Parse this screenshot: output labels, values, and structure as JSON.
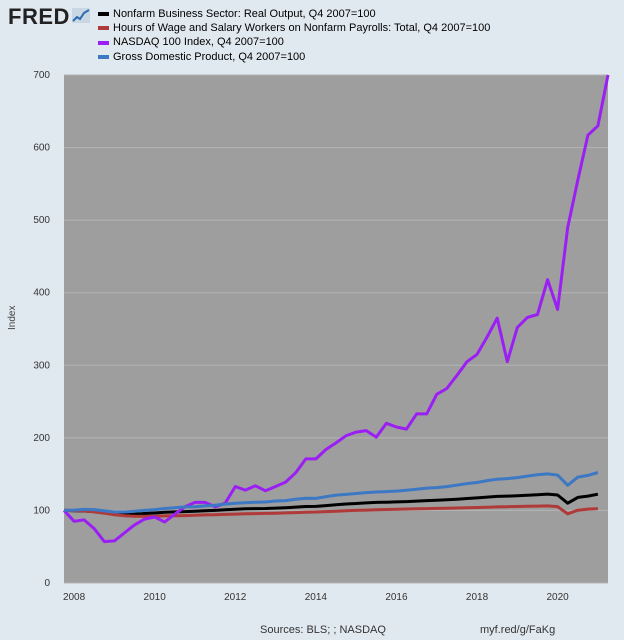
{
  "brand": {
    "logo_text": "FRED",
    "logo_icon": "trend-line-icon"
  },
  "footer": {
    "sources": "Sources: BLS; ; NASDAQ",
    "link": "myf.red/g/FaKg"
  },
  "chart_data": {
    "type": "line",
    "title": "",
    "xlabel": "",
    "ylabel": "Index",
    "xlim": [
      2007.75,
      2021.25
    ],
    "ylim": [
      0,
      700
    ],
    "yticks": [
      0,
      100,
      200,
      300,
      400,
      500,
      600,
      700
    ],
    "xticks": [
      2008,
      2010,
      2012,
      2014,
      2016,
      2018,
      2020
    ],
    "plot_background": "#9e9e9e",
    "gridlines": "horizontal",
    "series": [
      {
        "name": "Nonfarm Business Sector: Real Output, Q4 2007=100",
        "color": "#000000",
        "x": [
          2007.75,
          2008.0,
          2008.25,
          2008.5,
          2008.75,
          2009.0,
          2009.25,
          2009.5,
          2009.75,
          2010.0,
          2010.25,
          2010.5,
          2010.75,
          2011.0,
          2011.25,
          2011.5,
          2011.75,
          2012.0,
          2012.25,
          2012.5,
          2012.75,
          2013.0,
          2013.25,
          2013.5,
          2013.75,
          2014.0,
          2014.25,
          2014.5,
          2014.75,
          2015.0,
          2015.25,
          2015.5,
          2015.75,
          2016.0,
          2016.25,
          2016.5,
          2016.75,
          2017.0,
          2017.25,
          2017.5,
          2017.75,
          2018.0,
          2018.25,
          2018.5,
          2018.75,
          2019.0,
          2019.25,
          2019.5,
          2019.75,
          2020.0,
          2020.25,
          2020.5,
          2020.75,
          2021.0
        ],
        "values": [
          100,
          99.5,
          99.2,
          98.4,
          96.8,
          95.2,
          94.6,
          95,
          95.8,
          96.5,
          97.4,
          98,
          98.4,
          99,
          99.5,
          100,
          100.8,
          101.6,
          102.2,
          102.5,
          102.6,
          103.2,
          103.8,
          104.6,
          105.4,
          105.6,
          106.6,
          107.8,
          108.8,
          109.6,
          110.4,
          111,
          111.3,
          111.8,
          112.2,
          112.8,
          113.5,
          114.1,
          114.7,
          115.5,
          116.4,
          117.3,
          118.4,
          119.3,
          119.8,
          120.3,
          120.9,
          121.7,
          122.5,
          121.3,
          110,
          118,
          119.8,
          122.3
        ]
      },
      {
        "name": "Hours of Wage and Salary Workers on Nonfarm Payrolls: Total, Q4 2007=100",
        "color": "#b03a3a",
        "x": [
          2007.75,
          2008.0,
          2008.25,
          2008.5,
          2008.75,
          2009.0,
          2009.25,
          2009.5,
          2009.75,
          2010.0,
          2010.25,
          2010.5,
          2010.75,
          2011.0,
          2011.25,
          2011.5,
          2011.75,
          2012.0,
          2012.25,
          2012.5,
          2012.75,
          2013.0,
          2013.25,
          2013.5,
          2013.75,
          2014.0,
          2014.25,
          2014.5,
          2014.75,
          2015.0,
          2015.25,
          2015.5,
          2015.75,
          2016.0,
          2016.25,
          2016.5,
          2016.75,
          2017.0,
          2017.25,
          2017.5,
          2017.75,
          2018.0,
          2018.25,
          2018.5,
          2018.75,
          2019.0,
          2019.25,
          2019.5,
          2019.75,
          2020.0,
          2020.25,
          2020.5,
          2020.75,
          2021.0
        ],
        "values": [
          100,
          99.8,
          99.3,
          98,
          96.2,
          94,
          92.6,
          92.1,
          91.8,
          91.9,
          92.4,
          92.6,
          92.9,
          93.3,
          93.8,
          94.1,
          94.5,
          95,
          95.3,
          95.6,
          95.9,
          96.2,
          96.6,
          97,
          97.4,
          97.8,
          98.4,
          98.9,
          99.5,
          100,
          100.5,
          100.9,
          101.3,
          101.6,
          102,
          102.2,
          102.5,
          102.8,
          103.1,
          103.4,
          103.8,
          104.1,
          104.5,
          104.9,
          105.2,
          105.4,
          105.7,
          106,
          106.2,
          105.3,
          95.2,
          100.3,
          101.8,
          102.5
        ]
      },
      {
        "name": "NASDAQ 100 Index, Q4 2007=100",
        "color": "#9b1ff5",
        "x": [
          2007.75,
          2008.0,
          2008.25,
          2008.5,
          2008.75,
          2009.0,
          2009.25,
          2009.5,
          2009.75,
          2010.0,
          2010.25,
          2010.5,
          2010.75,
          2011.0,
          2011.25,
          2011.5,
          2011.75,
          2012.0,
          2012.25,
          2012.5,
          2012.75,
          2013.0,
          2013.25,
          2013.5,
          2013.75,
          2014.0,
          2014.25,
          2014.5,
          2014.75,
          2015.0,
          2015.25,
          2015.5,
          2015.75,
          2016.0,
          2016.25,
          2016.5,
          2016.75,
          2017.0,
          2017.25,
          2017.5,
          2017.75,
          2018.0,
          2018.25,
          2018.5,
          2018.75,
          2019.0,
          2019.25,
          2019.5,
          2019.75,
          2020.0,
          2020.25,
          2020.5,
          2020.75,
          2021.0,
          2021.25
        ],
        "values": [
          100,
          85,
          87,
          75,
          57,
          58,
          69,
          80,
          88,
          91,
          84,
          95,
          105,
          111,
          111,
          105,
          110,
          133,
          128,
          134,
          127,
          133,
          139,
          152,
          171,
          171,
          184,
          193,
          203,
          208,
          210,
          201,
          220,
          215,
          212,
          233,
          233,
          260,
          268,
          286,
          305,
          315,
          339,
          365,
          305,
          352,
          366,
          370,
          418,
          377,
          490,
          555,
          617,
          630,
          700
        ]
      },
      {
        "name": "Gross Domestic Product, Q4 2007=100",
        "color": "#3c78c3",
        "x": [
          2007.75,
          2008.0,
          2008.25,
          2008.5,
          2008.75,
          2009.0,
          2009.25,
          2009.5,
          2009.75,
          2010.0,
          2010.25,
          2010.5,
          2010.75,
          2011.0,
          2011.25,
          2011.5,
          2011.75,
          2012.0,
          2012.25,
          2012.5,
          2012.75,
          2013.0,
          2013.25,
          2013.5,
          2013.75,
          2014.0,
          2014.25,
          2014.5,
          2014.75,
          2015.0,
          2015.25,
          2015.5,
          2015.75,
          2016.0,
          2016.25,
          2016.5,
          2016.75,
          2017.0,
          2017.25,
          2017.5,
          2017.75,
          2018.0,
          2018.25,
          2018.5,
          2018.75,
          2019.0,
          2019.25,
          2019.5,
          2019.75,
          2020.0,
          2020.25,
          2020.5,
          2020.75,
          2021.0
        ],
        "values": [
          100,
          100.4,
          101.4,
          101.1,
          99.3,
          97.9,
          97.9,
          98.8,
          100.1,
          101.2,
          102.6,
          103.6,
          104.8,
          105,
          106.2,
          107.2,
          108.7,
          109.8,
          110.6,
          111.4,
          111.6,
          113,
          113.5,
          115.3,
          116.9,
          116.6,
          118.9,
          121.1,
          122.1,
          123.3,
          124.5,
          125.4,
          125.9,
          126.7,
          127.9,
          129.3,
          130.7,
          131.5,
          132.9,
          134.9,
          137,
          138.5,
          141.1,
          143,
          143.9,
          145.3,
          147.3,
          149.2,
          150.3,
          148.7,
          134.6,
          145.9,
          148.3,
          152.2
        ]
      }
    ]
  }
}
